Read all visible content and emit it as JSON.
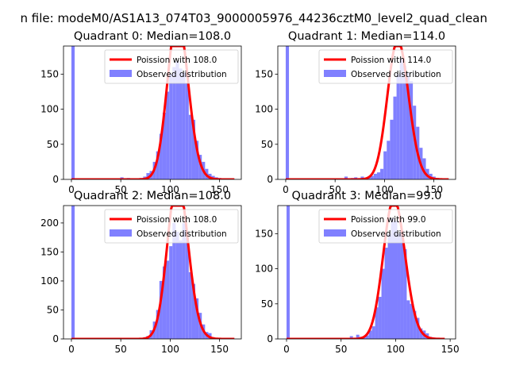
{
  "figure": {
    "suptitle": "n file: modeM0/AS1A13_074T03_9000005976_44236cztM0_level2_quad_clean"
  },
  "colors": {
    "hist": "#8080ff",
    "fit": "#ff0000",
    "fit_light": "#ff8080"
  },
  "chart_data": [
    {
      "type": "bar",
      "title": "Quadrant 0: Median=108.0",
      "xlim": [
        -8,
        172
      ],
      "ylim": [
        0,
        190
      ],
      "xticks": [
        0,
        50,
        100,
        150
      ],
      "yticks": [
        0,
        50,
        100,
        150
      ],
      "legend_position": "upper right",
      "series": [
        {
          "name": "Poission with 108.0",
          "kind": "line",
          "mean": 108.0,
          "x_start": 0,
          "x_end": 165
        },
        {
          "name": "Observed distribution",
          "kind": "hist",
          "bin_edges": [
            0,
            3.3,
            6.6,
            9.9,
            13.2,
            16.5,
            19.8,
            23.1,
            26.4,
            29.7,
            33.0,
            36.3,
            39.6,
            42.9,
            46.2,
            49.5,
            52.8,
            56.1,
            59.4,
            62.7,
            66.0,
            69.3,
            72.6,
            75.9,
            79.2,
            82.5,
            85.8,
            89.1,
            92.4,
            95.7,
            99.0,
            102.3,
            105.6,
            108.9,
            112.2,
            115.5,
            118.8,
            122.1,
            125.4,
            128.7,
            132.0,
            135.3,
            138.6,
            141.9,
            145.2,
            148.5,
            151.8,
            155.1,
            158.4,
            161.7,
            165.0
          ],
          "counts": [
            190,
            0,
            0,
            0,
            0,
            0,
            0,
            0,
            0,
            0,
            0,
            0,
            0,
            0,
            0,
            3,
            0,
            2,
            0,
            0,
            1,
            2,
            4,
            9,
            12,
            25,
            40,
            65,
            95,
            125,
            150,
            160,
            168,
            158,
            152,
            137,
            92,
            85,
            55,
            35,
            25,
            15,
            8,
            5,
            3,
            2,
            1,
            1,
            0,
            0
          ]
        }
      ]
    },
    {
      "type": "bar",
      "title": "Quadrant 1: Median=114.0",
      "xlim": [
        -8,
        172
      ],
      "ylim": [
        0,
        190
      ],
      "xticks": [
        0,
        50,
        100,
        150
      ],
      "yticks": [
        0,
        50,
        100,
        150
      ],
      "legend_position": "upper right",
      "series": [
        {
          "name": "Poission with 114.0",
          "kind": "line",
          "mean": 114.0,
          "x_start": 0,
          "x_end": 165
        },
        {
          "name": "Observed distribution",
          "kind": "hist",
          "bin_edges": [
            0,
            3.3,
            6.6,
            9.9,
            13.2,
            16.5,
            19.8,
            23.1,
            26.4,
            29.7,
            33.0,
            36.3,
            39.6,
            42.9,
            46.2,
            49.5,
            52.8,
            56.1,
            59.4,
            62.7,
            66.0,
            69.3,
            72.6,
            75.9,
            79.2,
            82.5,
            85.8,
            89.1,
            92.4,
            95.7,
            99.0,
            102.3,
            105.6,
            108.9,
            112.2,
            115.5,
            118.8,
            122.1,
            125.4,
            128.7,
            132.0,
            135.3,
            138.6,
            141.9,
            145.2,
            148.5,
            151.8,
            155.1,
            158.4,
            161.7,
            165.0
          ],
          "counts": [
            190,
            0,
            0,
            0,
            0,
            0,
            0,
            0,
            0,
            0,
            0,
            0,
            0,
            0,
            0,
            0,
            0,
            0,
            4,
            0,
            2,
            3,
            1,
            4,
            2,
            3,
            5,
            8,
            10,
            15,
            40,
            55,
            85,
            118,
            150,
            172,
            162,
            152,
            140,
            105,
            75,
            45,
            30,
            15,
            8,
            4,
            2,
            1,
            0,
            0
          ]
        }
      ]
    },
    {
      "type": "bar",
      "title": "Quadrant 2: Median=108.0",
      "xlim": [
        -8,
        172
      ],
      "ylim": [
        0,
        230
      ],
      "xticks": [
        0,
        50,
        100,
        150
      ],
      "yticks": [
        0,
        50,
        100,
        150,
        200
      ],
      "legend_position": "upper right",
      "series": [
        {
          "name": "Poission with 108.0",
          "kind": "line",
          "mean": 108.0,
          "x_start": 0,
          "x_end": 165
        },
        {
          "name": "Observed distribution",
          "kind": "hist",
          "bin_edges": [
            0,
            3.3,
            6.6,
            9.9,
            13.2,
            16.5,
            19.8,
            23.1,
            26.4,
            29.7,
            33.0,
            36.3,
            39.6,
            42.9,
            46.2,
            49.5,
            52.8,
            56.1,
            59.4,
            62.7,
            66.0,
            69.3,
            72.6,
            75.9,
            79.2,
            82.5,
            85.8,
            89.1,
            92.4,
            95.7,
            99.0,
            102.3,
            105.6,
            108.9,
            112.2,
            115.5,
            118.8,
            122.1,
            125.4,
            128.7,
            132.0,
            135.3,
            138.6,
            141.9,
            145.2,
            148.5,
            151.8,
            155.1,
            158.4,
            161.7,
            165.0
          ],
          "counts": [
            230,
            0,
            0,
            0,
            0,
            0,
            0,
            0,
            0,
            0,
            0,
            0,
            0,
            0,
            0,
            0,
            2,
            0,
            0,
            0,
            1,
            0,
            3,
            5,
            15,
            30,
            50,
            100,
            125,
            135,
            160,
            200,
            185,
            170,
            200,
            175,
            115,
            95,
            70,
            45,
            25,
            12,
            10,
            3,
            2,
            1,
            1,
            0,
            0,
            0
          ]
        }
      ]
    },
    {
      "type": "bar",
      "title": "Quadrant 3: Median=99.0",
      "xlim": [
        -8,
        155
      ],
      "ylim": [
        0,
        190
      ],
      "xticks": [
        0,
        50,
        100,
        150
      ],
      "yticks": [
        0,
        50,
        100,
        150
      ],
      "legend_position": "upper right",
      "series": [
        {
          "name": "Poission with 99.0",
          "kind": "line",
          "mean": 99.0,
          "x_start": 0,
          "x_end": 145
        },
        {
          "name": "Observed distribution",
          "kind": "hist",
          "bin_edges": [
            0,
            2.9,
            5.8,
            8.7,
            11.6,
            14.5,
            17.4,
            20.3,
            23.2,
            26.1,
            29.0,
            31.9,
            34.8,
            37.7,
            40.6,
            43.5,
            46.4,
            49.3,
            52.2,
            55.1,
            58.0,
            60.9,
            63.8,
            66.7,
            69.6,
            72.5,
            75.4,
            78.3,
            81.2,
            84.1,
            87.0,
            89.9,
            92.8,
            95.7,
            98.6,
            101.5,
            104.4,
            107.3,
            110.2,
            113.1,
            116.0,
            118.9,
            121.8,
            124.7,
            127.6,
            130.5,
            133.4,
            136.3,
            139.2,
            142.1,
            145.0
          ],
          "counts": [
            190,
            0,
            0,
            0,
            0,
            0,
            0,
            0,
            0,
            0,
            0,
            0,
            0,
            0,
            0,
            0,
            0,
            0,
            0,
            0,
            4,
            1,
            6,
            3,
            2,
            5,
            12,
            18,
            45,
            60,
            100,
            130,
            150,
            172,
            168,
            150,
            155,
            128,
            55,
            50,
            40,
            30,
            15,
            12,
            8,
            3,
            2,
            1,
            0,
            0
          ]
        }
      ]
    }
  ]
}
